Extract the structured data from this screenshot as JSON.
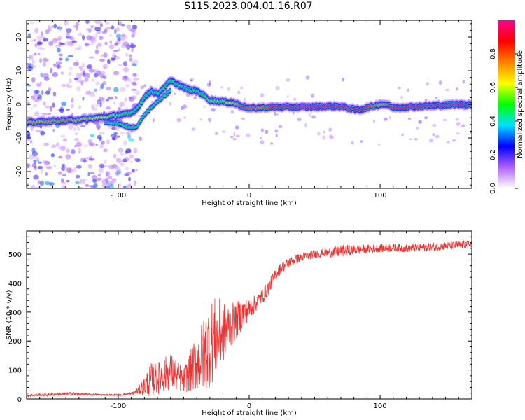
{
  "figure_title": "S115.2023.004.01.16.R07",
  "chart_data": [
    {
      "type": "heatmap",
      "title": "",
      "xlabel": "Height of straight line (km)",
      "ylabel": "Frequency (Hz)",
      "xlim": [
        -170,
        170
      ],
      "ylim": [
        -25,
        25
      ],
      "x_ticks": [
        -100,
        0,
        100
      ],
      "x_tick_labels": [
        "-100",
        "0",
        "100"
      ],
      "y_ticks": [
        -20,
        -10,
        0,
        10,
        20
      ],
      "y_tick_labels": [
        "-20",
        "-10",
        "0",
        "10",
        "20"
      ],
      "colorbar": {
        "label": "Normalized spectral amplitude",
        "range": [
          0,
          1
        ],
        "ticks": [
          0.0,
          0.2,
          0.4,
          0.6,
          0.8
        ],
        "tick_labels": [
          "0.0",
          "0.2",
          "0.4",
          "0.6",
          "0.8"
        ],
        "colors": [
          "#ffffff",
          "#b060ff",
          "#0000ff",
          "#00e0ff",
          "#00ff00",
          "#ffff00",
          "#ff8000",
          "#ff0000",
          "#ff0090"
        ]
      },
      "ridge": {
        "name": "spectral ridge",
        "x": [
          -170,
          -160,
          -150,
          -140,
          -130,
          -120,
          -110,
          -100,
          -95,
          -90,
          -85,
          -80,
          -75,
          -70,
          -65,
          -60,
          -55,
          -50,
          -45,
          -40,
          -35,
          -30,
          -25,
          -20,
          -15,
          -10,
          -5,
          0,
          10,
          20,
          30,
          40,
          50,
          60,
          70,
          80,
          85,
          90,
          100,
          105,
          110,
          120,
          130,
          140,
          150,
          160,
          170
        ],
        "frequency": [
          -5.5,
          -5.2,
          -5.0,
          -4.8,
          -4.6,
          -4.2,
          -3.8,
          -3.2,
          -3.0,
          -2.6,
          -1.0,
          2.0,
          4.0,
          3.0,
          5.0,
          7.0,
          6.0,
          5.0,
          4.2,
          4.0,
          2.8,
          1.2,
          1.0,
          0.8,
          0.6,
          0.2,
          -0.5,
          -1.2,
          -1.0,
          -0.8,
          -0.8,
          -0.8,
          -0.7,
          -0.6,
          -0.6,
          -1.5,
          -1.6,
          -1.0,
          0.0,
          0.0,
          -1.0,
          -0.8,
          -0.6,
          -0.4,
          -0.2,
          0.0,
          0.0
        ],
        "peak_amplitude": [
          0.7,
          0.7,
          0.75,
          0.75,
          0.7,
          0.65,
          0.6,
          0.55,
          0.5,
          0.45,
          0.45,
          0.45,
          0.45,
          0.45,
          0.45,
          0.45,
          0.45,
          0.45,
          0.45,
          0.45,
          0.5,
          0.55,
          0.55,
          0.55,
          0.6,
          0.7,
          0.85,
          0.8,
          0.75,
          0.9,
          0.95,
          0.98,
          0.98,
          0.95,
          0.95,
          0.9,
          0.9,
          0.85,
          0.7,
          0.75,
          0.95,
          0.95,
          0.95,
          0.95,
          0.95,
          0.98,
          0.98
        ]
      },
      "secondary_branch": {
        "x": [
          -110,
          -100,
          -90,
          -85,
          -80,
          -75,
          -70,
          -65,
          -60
        ],
        "frequency": [
          -5.2,
          -5.6,
          -7.0,
          -6.5,
          -3.0,
          -1.0,
          1.0,
          2.5,
          4.0
        ]
      },
      "noise_region": {
        "x_range": [
          -170,
          -95
        ],
        "frequency_range": [
          -25,
          25
        ],
        "amplitude": 0.15
      }
    },
    {
      "type": "line",
      "title": "",
      "xlabel": "Height of straight line (km)",
      "ylabel": "SNR (10 * v/v)",
      "xlim": [
        -170,
        170
      ],
      "ylim": [
        0,
        580
      ],
      "x_ticks": [
        -100,
        0,
        100
      ],
      "x_tick_labels": [
        "-100",
        "0",
        "100"
      ],
      "y_ticks": [
        0,
        100,
        200,
        300,
        400,
        500
      ],
      "y_tick_labels": [
        "0",
        "100",
        "200",
        "300",
        "400",
        "500"
      ],
      "series": [
        {
          "color": "#ee3333",
          "x": [
            -170,
            -160,
            -150,
            -140,
            -130,
            -120,
            -110,
            -100,
            -90,
            -85,
            -80,
            -75,
            -70,
            -65,
            -60,
            -55,
            -50,
            -45,
            -40,
            -35,
            -30,
            -25,
            -20,
            -15,
            -10,
            -5,
            0,
            5,
            10,
            15,
            20,
            25,
            30,
            40,
            50,
            60,
            70,
            80,
            90,
            100,
            110,
            120,
            130,
            140,
            150,
            160,
            170
          ],
          "y": [
            12,
            14,
            16,
            18,
            17,
            15,
            14,
            14,
            18,
            28,
            45,
            65,
            70,
            85,
            95,
            80,
            65,
            95,
            125,
            150,
            190,
            215,
            230,
            250,
            270,
            295,
            310,
            330,
            355,
            385,
            430,
            455,
            470,
            490,
            500,
            505,
            510,
            515,
            518,
            520,
            522,
            520,
            522,
            525,
            528,
            530,
            535
          ],
          "jitter": [
            4,
            5,
            5,
            6,
            5,
            4,
            3,
            3,
            5,
            12,
            35,
            60,
            55,
            60,
            65,
            55,
            45,
            70,
            100,
            130,
            150,
            140,
            110,
            80,
            65,
            55,
            35,
            30,
            28,
            26,
            22,
            20,
            18,
            16,
            15,
            15,
            22,
            18,
            15,
            14,
            14,
            14,
            14,
            14,
            14,
            14,
            14
          ]
        }
      ]
    }
  ]
}
